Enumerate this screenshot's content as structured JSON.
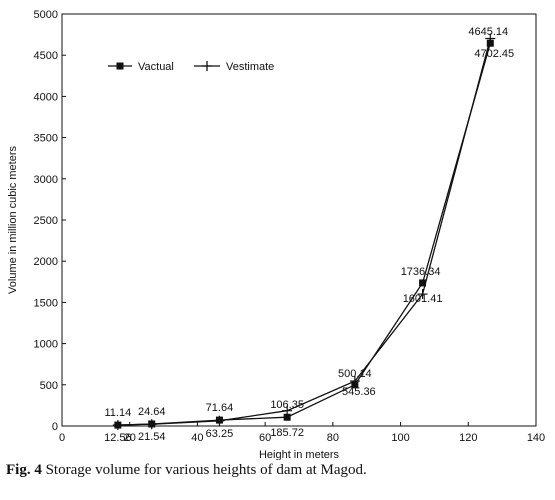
{
  "caption": {
    "label": "Fig. 4",
    "text": "Storage volume for various heights of dam at Magod."
  },
  "chart_data": {
    "type": "line",
    "title": "",
    "xlabel": "Height in meters",
    "ylabel": "Volume in million cubic meters",
    "xlim": [
      0,
      140
    ],
    "ylim": [
      0,
      5000
    ],
    "xticks": [
      0,
      20,
      40,
      60,
      80,
      100,
      120,
      140
    ],
    "yticks": [
      0,
      500,
      1000,
      1500,
      2000,
      2500,
      3000,
      3500,
      4000,
      4500,
      5000
    ],
    "grid": false,
    "legend_position": "top-left",
    "series": [
      {
        "name": "Vactual",
        "marker": "square",
        "x": [
          16.5,
          26.5,
          46.5,
          66.5,
          86.5,
          106.5,
          126.5
        ],
        "y": [
          11.14,
          24.64,
          71.64,
          106.35,
          500.14,
          1736.34,
          4645.14
        ],
        "labels": [
          "11.14",
          "24.64",
          "71.64",
          "106.35",
          "500.14",
          "1736.34",
          "4645.14"
        ]
      },
      {
        "name": "Vestimate",
        "marker": "plus",
        "x": [
          16.5,
          26.5,
          46.5,
          66.5,
          86.5,
          106.5,
          126.5
        ],
        "y": [
          12.56,
          21.54,
          63.25,
          185.72,
          545.36,
          1601.41,
          4702.45
        ],
        "labels": [
          "12.56",
          "21.54",
          "63.25",
          "185.72",
          "545.36",
          "1601.41",
          "4702.45"
        ]
      }
    ]
  }
}
